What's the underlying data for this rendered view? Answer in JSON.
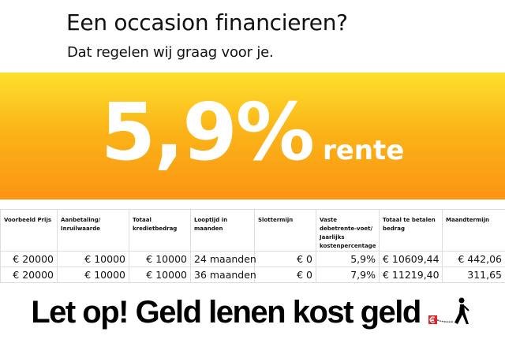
{
  "header": {
    "title": "Een occasion financieren?",
    "subtitle": "Dat regelen wij graag voor je."
  },
  "promo": {
    "rate": "5,9%",
    "suffix": "rente",
    "gradient_top": "#fde02c",
    "gradient_bottom": "#fb9413"
  },
  "table": {
    "headers": [
      "Voorbeeld Prijs",
      "Aanbetaling/ Inruilwaarde",
      "Totaal kredietbedrag",
      "Looptijd in maanden",
      "Slottermijn",
      "Vaste debetrente-voet/ Jaarlijks kostenpercentage",
      "Totaal te betalen bedrag",
      "Maandtermijn"
    ],
    "rows": [
      [
        "€ 20000",
        "€ 10000",
        "€ 10000",
        "24 maanden",
        "€ 0",
        "5,9%",
        "€ 10609,44",
        "€ 442,06"
      ],
      [
        "€ 20000",
        "€ 10000",
        "€ 10000",
        "36 maanden",
        "€ 0",
        "7,9%",
        "€ 11219,40",
        "311,65"
      ]
    ]
  },
  "footer": {
    "warning": "Let op! Geld lenen kost geld",
    "logo_icon": "walking-man-with-euro-ball-icon",
    "logo_color": "#d9252b"
  }
}
